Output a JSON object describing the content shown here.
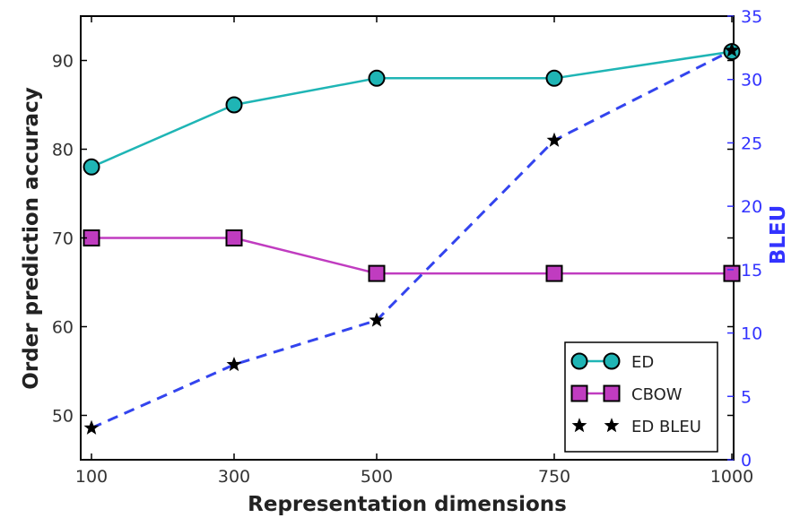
{
  "chart_data": {
    "type": "line",
    "categories": [
      "100",
      "300",
      "500",
      "750",
      "1000"
    ],
    "xlabel": "Representation dimensions",
    "ylabel": "Order prediction accuracy",
    "y2label": "BLEU",
    "ylim": [
      45,
      95
    ],
    "y2lim": [
      0,
      35
    ],
    "left_ticks": [
      "50",
      "60",
      "70",
      "80",
      "90"
    ],
    "right_ticks": [
      "0",
      "5",
      "10",
      "15",
      "20",
      "25",
      "30",
      "35"
    ],
    "legend_position": "lower-right",
    "grid": false,
    "series": [
      {
        "name": "ED",
        "axis": "left",
        "values": [
          78,
          85,
          88,
          88,
          91
        ],
        "color": "#1fb5b5",
        "marker": "circle",
        "line": "solid"
      },
      {
        "name": "CBOW",
        "axis": "left",
        "values": [
          70,
          70,
          66,
          66,
          66
        ],
        "color": "#c03cc0",
        "marker": "square",
        "line": "solid"
      },
      {
        "name": "ED BLEU",
        "axis": "right",
        "values": [
          2.5,
          7.5,
          11,
          25.2,
          32.3
        ],
        "color": "#3344ee",
        "marker": "star",
        "line": "dashed"
      }
    ]
  }
}
